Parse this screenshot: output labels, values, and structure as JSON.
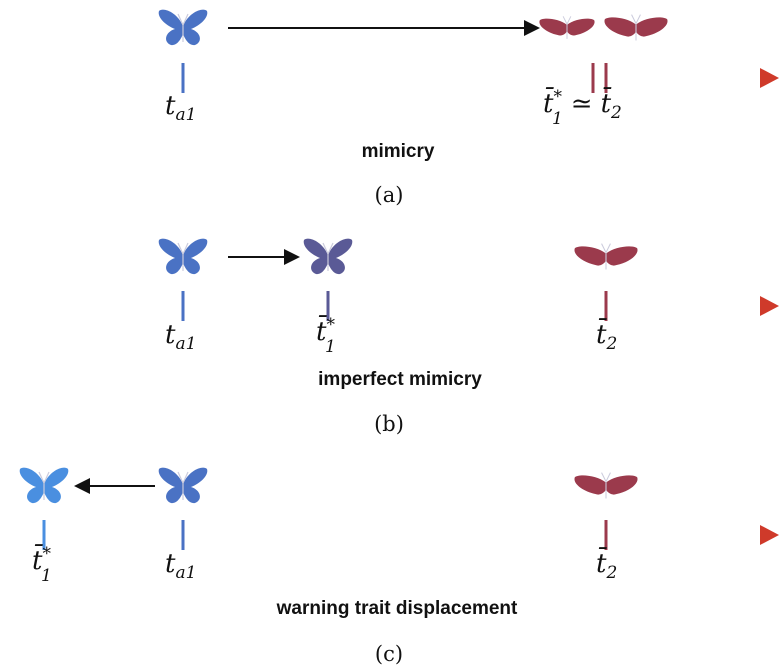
{
  "panels": [
    {
      "caption": "mimicry",
      "label": "(a)",
      "ticks": [
        {
          "base": "t",
          "sub": "a1"
        },
        {
          "base": "t̄",
          "sup": "*",
          "sub": "1",
          "relation": "≃",
          "base2": "t̄",
          "sub2": "2"
        }
      ]
    },
    {
      "caption": "imperfect mimicry",
      "label": "(b)",
      "ticks": [
        {
          "base": "t",
          "sub": "a1"
        },
        {
          "base": "t̄",
          "sup": "*",
          "sub": "1"
        },
        {
          "base": "t̄",
          "sub": "2"
        }
      ]
    },
    {
      "caption": "warning trait displacement",
      "label": "(c)",
      "ticks": [
        {
          "base": "t̄",
          "sup": "*",
          "sub": "1"
        },
        {
          "base": "t",
          "sub": "a1"
        },
        {
          "base": "t̄",
          "sub": "2"
        }
      ]
    }
  ]
}
